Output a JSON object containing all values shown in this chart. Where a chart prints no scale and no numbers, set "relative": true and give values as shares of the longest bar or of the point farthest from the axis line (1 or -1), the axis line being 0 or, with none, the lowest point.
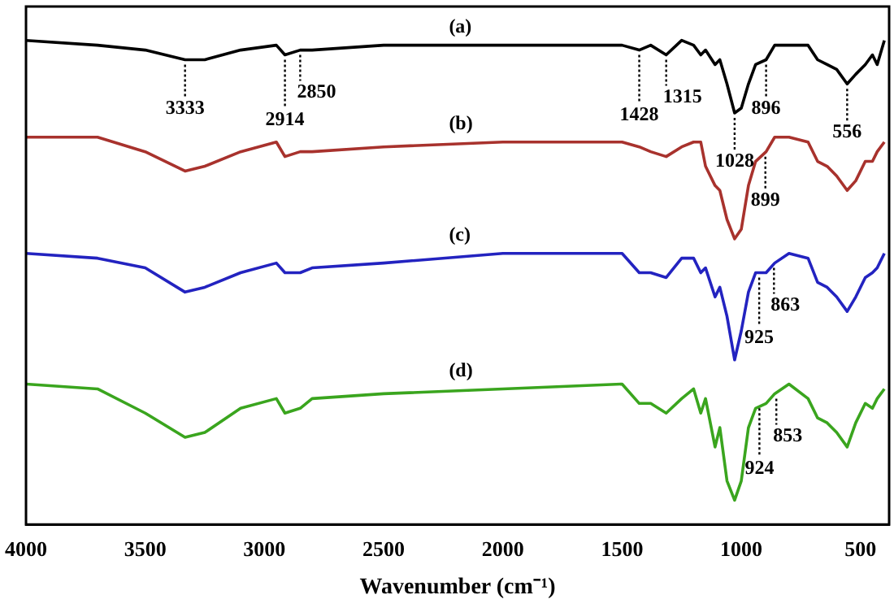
{
  "chart_data": {
    "type": "line",
    "relative": true,
    "xlabel": "Wavenumber (cm⁻¹)",
    "xlim": [
      4000,
      380
    ],
    "xticks": [
      4000,
      3500,
      3000,
      2500,
      2000,
      1500,
      1000,
      500
    ],
    "grid": false,
    "legend": false,
    "marker": "none",
    "line_style": "solid",
    "x": [
      4000,
      3700,
      3500,
      3333,
      3250,
      3100,
      2950,
      2914,
      2850,
      2800,
      2500,
      2000,
      1500,
      1428,
      1380,
      1315,
      1250,
      1200,
      1170,
      1150,
      1110,
      1090,
      1060,
      1028,
      1000,
      970,
      940,
      896,
      860,
      800,
      720,
      680,
      640,
      600,
      556,
      520,
      480,
      450,
      430,
      400
    ],
    "series": [
      {
        "name": "(a)",
        "color": "#000000",
        "values": [
          1.0,
          0.99,
          0.98,
          0.96,
          0.96,
          0.98,
          0.99,
          0.97,
          0.98,
          0.98,
          0.99,
          0.99,
          0.99,
          0.98,
          0.99,
          0.97,
          1.0,
          0.99,
          0.97,
          0.98,
          0.95,
          0.96,
          0.91,
          0.85,
          0.86,
          0.91,
          0.95,
          0.96,
          0.99,
          0.99,
          0.99,
          0.96,
          0.95,
          0.94,
          0.91,
          0.93,
          0.95,
          0.97,
          0.95,
          1.0
        ]
      },
      {
        "name": "(b)",
        "color": "#a8322d",
        "values": [
          0.8,
          0.8,
          0.77,
          0.73,
          0.74,
          0.77,
          0.79,
          0.76,
          0.77,
          0.77,
          0.78,
          0.79,
          0.79,
          0.78,
          0.77,
          0.76,
          0.78,
          0.79,
          0.79,
          0.74,
          0.7,
          0.69,
          0.63,
          0.59,
          0.61,
          0.7,
          0.75,
          0.77,
          0.8,
          0.8,
          0.79,
          0.75,
          0.74,
          0.72,
          0.69,
          0.71,
          0.75,
          0.75,
          0.77,
          0.79
        ]
      },
      {
        "name": "(c)",
        "color": "#2323c0",
        "values": [
          0.56,
          0.55,
          0.53,
          0.48,
          0.49,
          0.52,
          0.54,
          0.52,
          0.52,
          0.53,
          0.54,
          0.56,
          0.56,
          0.52,
          0.52,
          0.51,
          0.55,
          0.55,
          0.52,
          0.53,
          0.47,
          0.49,
          0.43,
          0.34,
          0.4,
          0.48,
          0.52,
          0.52,
          0.54,
          0.56,
          0.55,
          0.5,
          0.49,
          0.47,
          0.44,
          0.47,
          0.51,
          0.52,
          0.53,
          0.56
        ]
      },
      {
        "name": "(d)",
        "color": "#3aa51e",
        "values": [
          0.29,
          0.28,
          0.23,
          0.18,
          0.19,
          0.24,
          0.26,
          0.23,
          0.24,
          0.26,
          0.27,
          0.28,
          0.29,
          0.25,
          0.25,
          0.23,
          0.26,
          0.28,
          0.23,
          0.26,
          0.16,
          0.2,
          0.09,
          0.05,
          0.09,
          0.2,
          0.24,
          0.25,
          0.27,
          0.29,
          0.26,
          0.22,
          0.21,
          0.19,
          0.16,
          0.21,
          0.25,
          0.24,
          0.26,
          0.28
        ]
      }
    ],
    "annotations": [
      {
        "text": "3333",
        "x": 3333,
        "y": 0.96
      },
      {
        "text": "2914",
        "x": 2914,
        "y": 0.97
      },
      {
        "text": "2850",
        "x": 2850,
        "y": 0.98
      },
      {
        "text": "1428",
        "x": 1428,
        "y": 0.98
      },
      {
        "text": "1315",
        "x": 1315,
        "y": 0.97
      },
      {
        "text": "1028",
        "x": 1028,
        "y": 0.85
      },
      {
        "text": "896",
        "x": 896,
        "y": 0.96
      },
      {
        "text": "556",
        "x": 556,
        "y": 0.91
      },
      {
        "text": "899",
        "x": 899,
        "y": 0.77
      },
      {
        "text": "925",
        "x": 925,
        "y": 0.52
      },
      {
        "text": "863",
        "x": 863,
        "y": 0.54
      },
      {
        "text": "924",
        "x": 924,
        "y": 0.25
      },
      {
        "text": "853",
        "x": 853,
        "y": 0.27
      }
    ]
  }
}
